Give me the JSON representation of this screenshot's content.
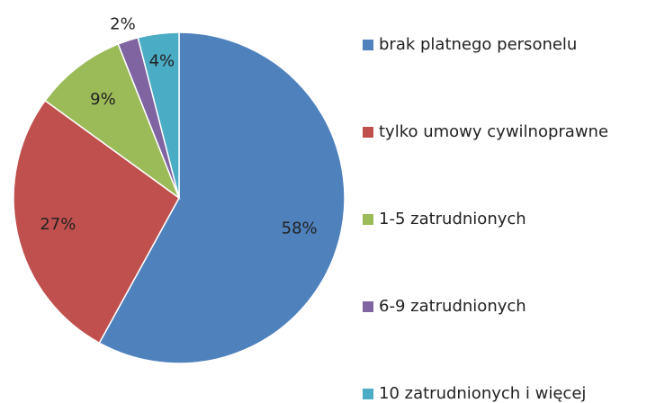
{
  "chart_data": {
    "type": "pie",
    "categories": [
      "brak platnego personelu",
      "tylko umowy cywilnoprawne",
      "1-5 zatrudnionych",
      "6-9 zatrudnionych",
      "10 zatrudnionych i więcej"
    ],
    "values": [
      58,
      27,
      9,
      2,
      4
    ],
    "value_labels": [
      "58%",
      "27%",
      "9%",
      "2%",
      "4%"
    ],
    "colors": [
      "#4f81bd",
      "#c0504d",
      "#9bbb59",
      "#8064a2",
      "#4bacc6"
    ],
    "legend": "right"
  }
}
